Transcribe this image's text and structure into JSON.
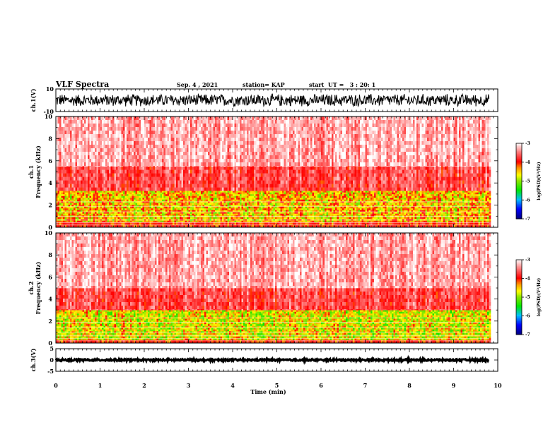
{
  "header": {
    "title": "VLF Spectra",
    "date": "Sep. 4 , 2021",
    "station": "station= KAP",
    "start": "start  UT =   3 : 20: 1"
  },
  "chart_data": [
    {
      "type": "line",
      "panel": "ch1-waveform",
      "ylabel": "ch.1(V)",
      "ylim": [
        -10,
        10
      ],
      "y_tick_labels": [
        "10",
        "-10"
      ],
      "trace_color": "#000000",
      "note": "dense oscillating waveform spanning roughly ±6 V over 0–9.8 min"
    },
    {
      "type": "heatmap",
      "panel": "ch1-spectrogram",
      "ylabel": "ch.1\nFrequency (kHz)",
      "ylim": [
        0,
        10
      ],
      "y_tick_labels": [
        "0",
        "2",
        "4",
        "6",
        "8",
        "10"
      ],
      "color_scale": {
        "label": "log(PSD)(V²/Hz)",
        "range": [
          -7,
          -3
        ],
        "tick_labels": [
          "-3",
          "-4",
          "-5",
          "-6",
          "-7"
        ],
        "colors": [
          "#000080",
          "#0000ff",
          "#00c0ff",
          "#00ff00",
          "#ffff00",
          "#ff8000",
          "#ff0000",
          "#ffffff"
        ]
      },
      "bands": [
        {
          "f_range_khz": [
            0,
            0.5
          ],
          "log_psd": -4.0
        },
        {
          "f_range_khz": [
            0.5,
            3.3
          ],
          "log_psd": -4.5
        },
        {
          "f_range_khz": [
            3.3,
            5.5
          ],
          "log_psd": -3.7
        },
        {
          "f_range_khz": [
            5.5,
            10
          ],
          "log_psd": -3.3
        }
      ]
    },
    {
      "type": "heatmap",
      "panel": "ch2-spectrogram",
      "ylabel": "ch.2\nFrequency (kHz)",
      "ylim": [
        0,
        10
      ],
      "y_tick_labels": [
        "0",
        "2",
        "4",
        "6",
        "8",
        "10"
      ],
      "color_scale": {
        "label": "log(PSD)(V²/Hz)",
        "range": [
          -7,
          -3
        ],
        "tick_labels": [
          "-3",
          "-4",
          "-5",
          "-6",
          "-7"
        ]
      },
      "bands": [
        {
          "f_range_khz": [
            0,
            0.3
          ],
          "log_psd": -4.0
        },
        {
          "f_range_khz": [
            0.3,
            3.0
          ],
          "log_psd": -4.7
        },
        {
          "f_range_khz": [
            3.0,
            5.0
          ],
          "log_psd": -3.7
        },
        {
          "f_range_khz": [
            5.0,
            10
          ],
          "log_psd": -3.3
        }
      ]
    },
    {
      "type": "line",
      "panel": "ch3-waveform",
      "ylabel": "ch.3(V)",
      "ylim": [
        -5,
        5
      ],
      "y_tick_labels": [
        "5",
        "0",
        "-5"
      ],
      "trace_color": "#000000",
      "note": "narrow thick band near 0 V throughout"
    }
  ],
  "x_axis": {
    "xlabel": "Time (min)",
    "xlim": [
      0,
      10
    ],
    "data_extent_min": 9.8,
    "tick_labels": [
      "0",
      "1",
      "2",
      "3",
      "4",
      "5",
      "6",
      "7",
      "8",
      "9",
      "10"
    ]
  }
}
